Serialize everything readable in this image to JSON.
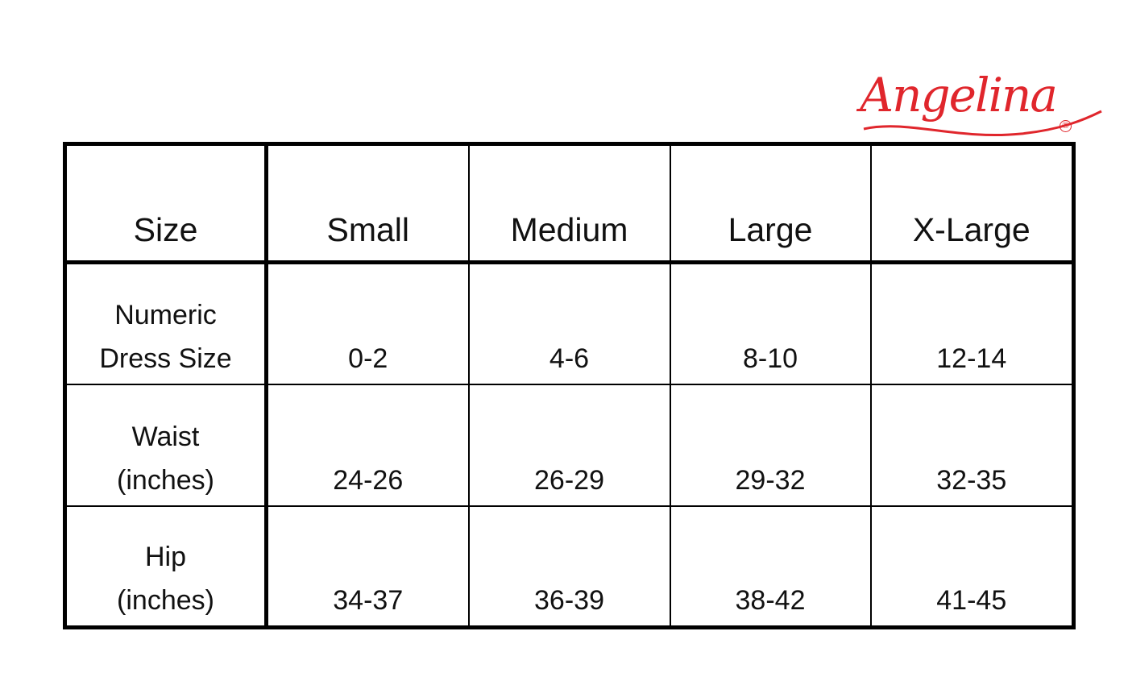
{
  "brand": {
    "logo_text": "Angelina",
    "registered_mark": "®",
    "color": "#e0262c"
  },
  "table": {
    "headers": [
      "Size",
      "Small",
      "Medium",
      "Large",
      "X-Large"
    ],
    "rows": [
      {
        "label_line1": "Numeric",
        "label_line2": "Dress Size",
        "values": [
          "0-2",
          "4-6",
          "8-10",
          "12-14"
        ]
      },
      {
        "label_line1": "Waist",
        "label_line2": "(inches)",
        "values": [
          "24-26",
          "26-29",
          "29-32",
          "32-35"
        ]
      },
      {
        "label_line1": "Hip",
        "label_line2": "(inches)",
        "values": [
          "34-37",
          "36-39",
          "38-42",
          "41-45"
        ]
      }
    ]
  }
}
